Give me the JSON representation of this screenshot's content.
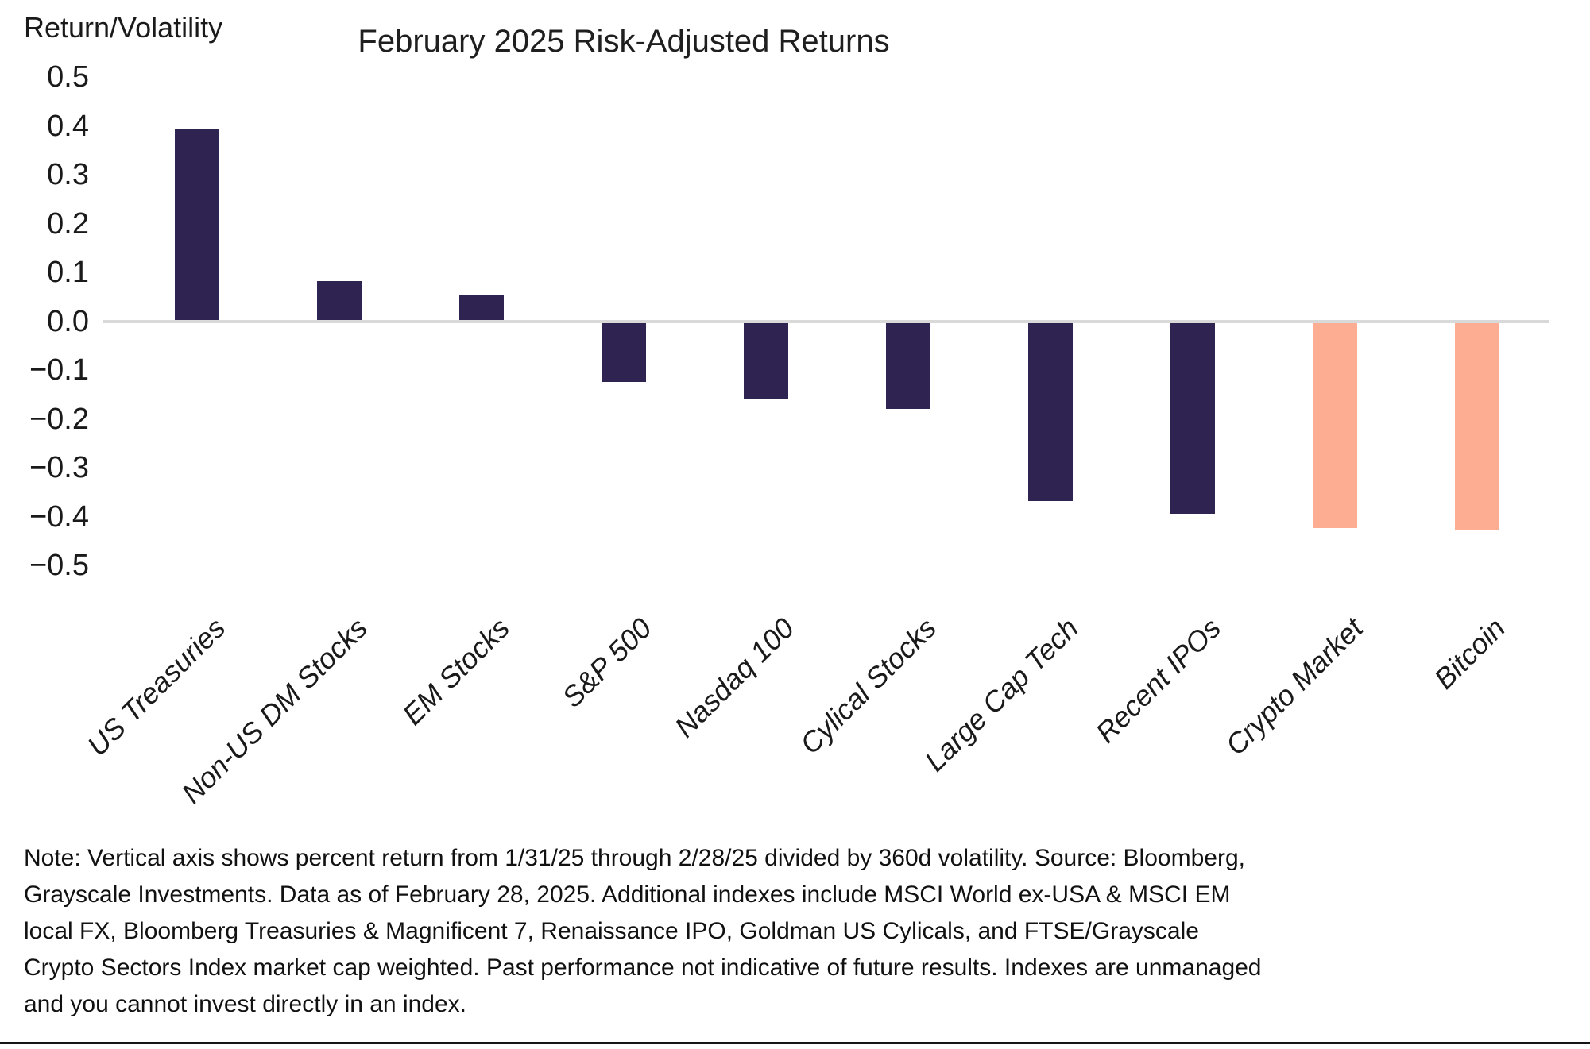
{
  "header": {
    "title": "February 2025 Risk-Adjusted Returns",
    "y_axis_title": "Return/Volatility"
  },
  "chart_data": {
    "type": "bar",
    "title": "February 2025 Risk-Adjusted Returns",
    "ylabel": "Return/Volatility",
    "xlabel": "",
    "ylim": [
      -0.5,
      0.5
    ],
    "yticks": [
      0.5,
      0.4,
      0.3,
      0.2,
      0.1,
      0.0,
      -0.1,
      -0.2,
      -0.3,
      -0.4,
      -0.5
    ],
    "grid": false,
    "legend": "none",
    "categories": [
      "US Treasuries",
      "Non-US DM Stocks",
      "EM Stocks",
      "S&P 500",
      "Nasdaq 100",
      "Cylical Stocks",
      "Large Cap Tech",
      "Recent IPOs",
      "Crypto Market",
      "Bitcoin"
    ],
    "values": [
      0.39,
      0.08,
      0.05,
      -0.12,
      -0.155,
      -0.175,
      -0.365,
      -0.39,
      -0.42,
      -0.425
    ],
    "bar_colors": [
      "#2F2451",
      "#2F2451",
      "#2F2451",
      "#2F2451",
      "#2F2451",
      "#2F2451",
      "#2F2451",
      "#2F2451",
      "#FCAD92",
      "#FCAD92"
    ],
    "colors": {
      "dark_bar": "#2F2451",
      "highlight_bar": "#FCAD92",
      "zero_line": "#d9d9d9",
      "text": "#1a1a1a"
    }
  },
  "note": "Note: Vertical axis shows percent return from 1/31/25 through 2/28/25 divided by 360d volatility. Source: Bloomberg, Grayscale Investments. Data as of February 28, 2025. Additional indexes include MSCI World ex-USA & MSCI EM local FX, Bloomberg Treasuries & Magnificent 7, Renaissance IPO, Goldman US Cylicals, and FTSE/Grayscale Crypto Sectors Index market cap weighted. Past performance not indicative of future results. Indexes are unmanaged and you cannot invest directly in an index."
}
